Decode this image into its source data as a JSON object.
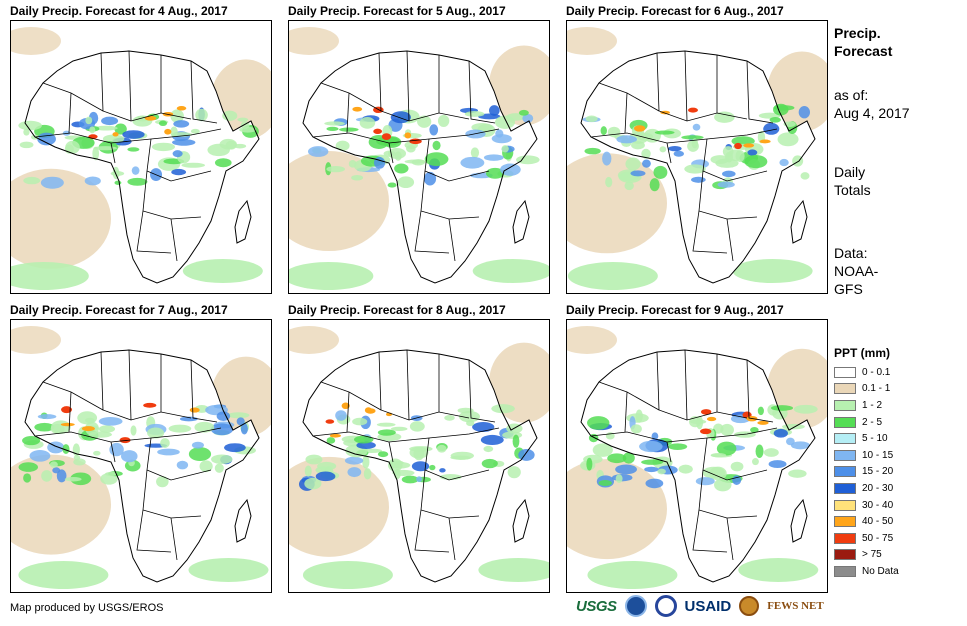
{
  "panels": [
    {
      "title": "Daily Precip. Forecast for 4 Aug., 2017"
    },
    {
      "title": "Daily Precip. Forecast for 5 Aug., 2017"
    },
    {
      "title": "Daily Precip. Forecast for 6 Aug., 2017"
    },
    {
      "title": "Daily Precip. Forecast for 7 Aug., 2017"
    },
    {
      "title": "Daily Precip. Forecast for 8 Aug., 2017"
    },
    {
      "title": "Daily Precip. Forecast for 9 Aug., 2017"
    }
  ],
  "sidebar": {
    "title_line1": "Precip.",
    "title_line2": "Forecast",
    "asof_label": "as of:",
    "asof_date": "Aug 4, 2017",
    "totals_line1": "Daily",
    "totals_line2": "Totals",
    "data_line1": "Data:",
    "data_line2": "NOAA-",
    "data_line3": "GFS"
  },
  "legend": {
    "title": "PPT (mm)",
    "items": [
      {
        "label": "0 - 0.1",
        "color": "#ffffff"
      },
      {
        "label": "0.1 - 1",
        "color": "#ead7b8"
      },
      {
        "label": "1 - 2",
        "color": "#b7f0b0"
      },
      {
        "label": "2 - 5",
        "color": "#55dd55"
      },
      {
        "label": "5 - 10",
        "color": "#b5eef5"
      },
      {
        "label": "10 - 15",
        "color": "#7fb6f2"
      },
      {
        "label": "15 - 20",
        "color": "#4d8fe8"
      },
      {
        "label": "20 - 30",
        "color": "#1f5fd6"
      },
      {
        "label": "30 - 40",
        "color": "#ffe27a"
      },
      {
        "label": "40 - 50",
        "color": "#ffa51a"
      },
      {
        "label": "50 - 75",
        "color": "#f03c0f"
      },
      {
        "label": "> 75",
        "color": "#9b1b10"
      },
      {
        "label": "No Data",
        "color": "#8c8c8c"
      }
    ]
  },
  "footer": {
    "credit": "Map produced by USGS/EROS",
    "logo_usgs": "USGS",
    "logo_usaid": "USAID",
    "logo_fews": "FEWS NET"
  }
}
